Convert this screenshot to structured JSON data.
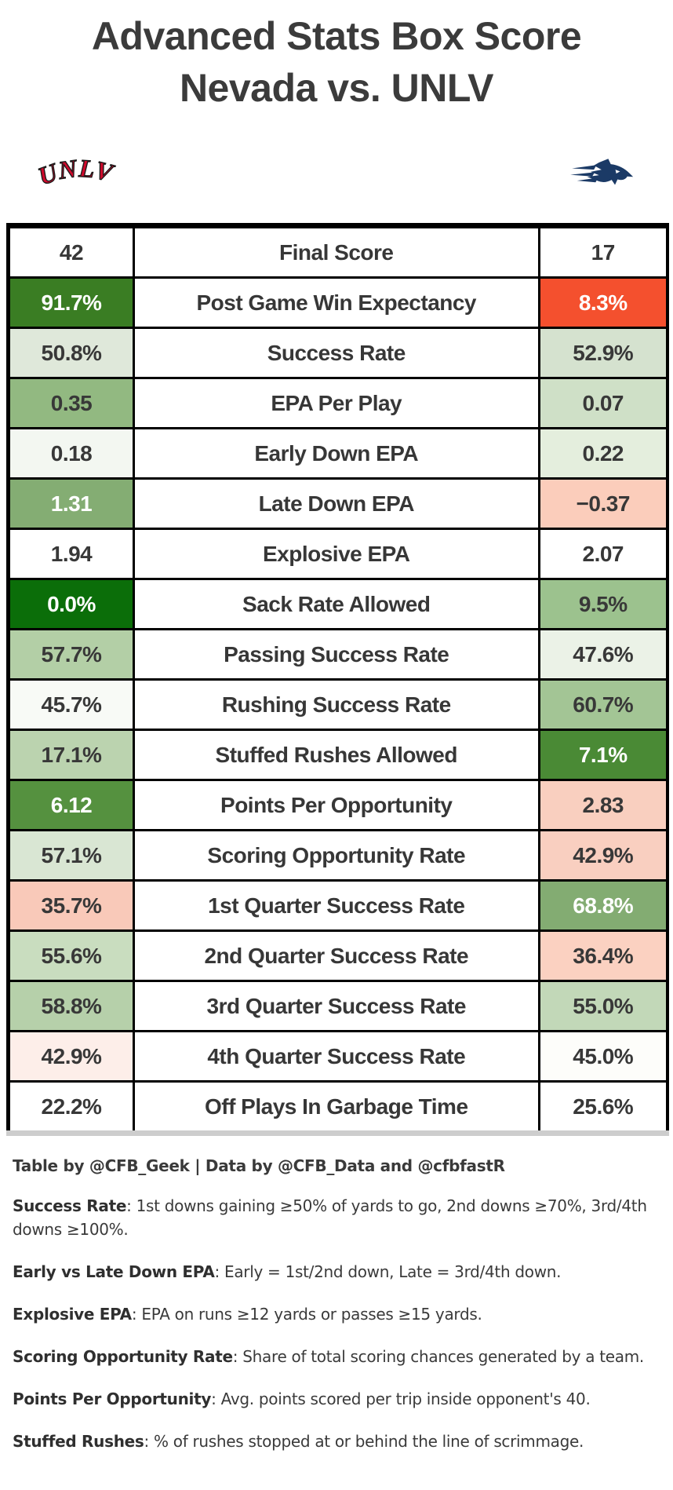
{
  "title": {
    "line1": "Advanced Stats Box Score",
    "line2": "Nevada vs. UNLV"
  },
  "teams": {
    "left": {
      "name": "UNLV",
      "logo": "unlv-wordmark",
      "color": "#cf0a2c",
      "outline": "#1a1a1a"
    },
    "right": {
      "name": "Nevada",
      "logo": "nevada-wolf",
      "color": "#1b3a66"
    }
  },
  "chart_data": {
    "type": "table",
    "title": "Advanced Stats Box Score - Nevada vs. UNLV",
    "columns": [
      "UNLV",
      "Metric",
      "Nevada"
    ],
    "rows": [
      {
        "label": "Final Score",
        "left": {
          "value": "42",
          "bg": "#ffffff",
          "fg": "#383838"
        },
        "right": {
          "value": "17",
          "bg": "#ffffff",
          "fg": "#383838"
        }
      },
      {
        "label": "Post Game Win Expectancy",
        "left": {
          "value": "91.7%",
          "bg": "#3a7d23",
          "fg": "#ffffff"
        },
        "right": {
          "value": "8.3%",
          "bg": "#f4502e",
          "fg": "#ffffff"
        }
      },
      {
        "label": "Success Rate",
        "left": {
          "value": "50.8%",
          "bg": "#dfe8da",
          "fg": "#383838"
        },
        "right": {
          "value": "52.9%",
          "bg": "#d5e2cf",
          "fg": "#383838"
        }
      },
      {
        "label": "EPA Per Play",
        "left": {
          "value": "0.35",
          "bg": "#92b981",
          "fg": "#383838"
        },
        "right": {
          "value": "0.07",
          "bg": "#cfe0c7",
          "fg": "#383838"
        }
      },
      {
        "label": "Early Down EPA",
        "left": {
          "value": "0.18",
          "bg": "#f3f7f1",
          "fg": "#383838"
        },
        "right": {
          "value": "0.22",
          "bg": "#e4eedd",
          "fg": "#383838"
        }
      },
      {
        "label": "Late Down EPA",
        "left": {
          "value": "1.31",
          "bg": "#84ad73",
          "fg": "#ffffff"
        },
        "right": {
          "value": "−0.37",
          "bg": "#fbcdbb",
          "fg": "#383838"
        }
      },
      {
        "label": "Explosive EPA",
        "left": {
          "value": "1.94",
          "bg": "#ffffff",
          "fg": "#383838"
        },
        "right": {
          "value": "2.07",
          "bg": "#ffffff",
          "fg": "#383838"
        }
      },
      {
        "label": "Sack Rate Allowed",
        "left": {
          "value": "0.0%",
          "bg": "#0b6e09",
          "fg": "#ffffff"
        },
        "right": {
          "value": "9.5%",
          "bg": "#9cc28e",
          "fg": "#383838"
        }
      },
      {
        "label": "Passing Success Rate",
        "left": {
          "value": "57.7%",
          "bg": "#b3cfa6",
          "fg": "#383838"
        },
        "right": {
          "value": "47.6%",
          "bg": "#ebf2e7",
          "fg": "#383838"
        }
      },
      {
        "label": "Rushing Success Rate",
        "left": {
          "value": "45.7%",
          "bg": "#f8faf6",
          "fg": "#383838"
        },
        "right": {
          "value": "60.7%",
          "bg": "#a3c595",
          "fg": "#383838"
        }
      },
      {
        "label": "Stuffed Rushes Allowed",
        "left": {
          "value": "17.1%",
          "bg": "#bbd3af",
          "fg": "#383838"
        },
        "right": {
          "value": "7.1%",
          "bg": "#4a8a35",
          "fg": "#ffffff"
        }
      },
      {
        "label": "Points Per Opportunity",
        "left": {
          "value": "6.12",
          "bg": "#55913f",
          "fg": "#ffffff"
        },
        "right": {
          "value": "2.83",
          "bg": "#f9cfbf",
          "fg": "#383838"
        }
      },
      {
        "label": "Scoring Opportunity Rate",
        "left": {
          "value": "57.1%",
          "bg": "#d9e6d3",
          "fg": "#383838"
        },
        "right": {
          "value": "42.9%",
          "bg": "#f9cfc0",
          "fg": "#383838"
        }
      },
      {
        "label": "1st Quarter Success Rate",
        "left": {
          "value": "35.7%",
          "bg": "#f9c9b9",
          "fg": "#383838"
        },
        "right": {
          "value": "68.8%",
          "bg": "#83ac72",
          "fg": "#ffffff"
        }
      },
      {
        "label": "2nd Quarter Success Rate",
        "left": {
          "value": "55.6%",
          "bg": "#c9ddbf",
          "fg": "#383838"
        },
        "right": {
          "value": "36.4%",
          "bg": "#fbd1c1",
          "fg": "#383838"
        }
      },
      {
        "label": "3rd Quarter Success Rate",
        "left": {
          "value": "58.8%",
          "bg": "#b6d0aa",
          "fg": "#383838"
        },
        "right": {
          "value": "55.0%",
          "bg": "#c2d8b8",
          "fg": "#383838"
        }
      },
      {
        "label": "4th Quarter Success Rate",
        "left": {
          "value": "42.9%",
          "bg": "#fdeee9",
          "fg": "#383838"
        },
        "right": {
          "value": "45.0%",
          "bg": "#fdfdfa",
          "fg": "#383838"
        }
      },
      {
        "label": "Off Plays In Garbage Time",
        "left": {
          "value": "22.2%",
          "bg": "#ffffff",
          "fg": "#383838"
        },
        "right": {
          "value": "25.6%",
          "bg": "#ffffff",
          "fg": "#383838"
        }
      }
    ]
  },
  "credit": "Table by @CFB_Geek | Data by @CFB_Data and @cfbfastR",
  "notes": [
    {
      "term": "Success Rate",
      "text": ": 1st downs gaining ≥50% of yards to go, 2nd downs ≥70%, 3rd/4th downs ≥100%."
    },
    {
      "term": "Early vs Late Down EPA",
      "text": ": Early = 1st/2nd down, Late = 3rd/4th down."
    },
    {
      "term": "Explosive EPA",
      "text": ": EPA on runs ≥12 yards or passes ≥15 yards."
    },
    {
      "term": "Scoring Opportunity Rate",
      "text": ": Share of total scoring chances generated by a team."
    },
    {
      "term": "Points Per Opportunity",
      "text": ": Avg. points scored per trip inside opponent's 40."
    },
    {
      "term": "Stuffed Rushes",
      "text": ": % of rushes stopped at or behind the line of scrimmage."
    }
  ]
}
